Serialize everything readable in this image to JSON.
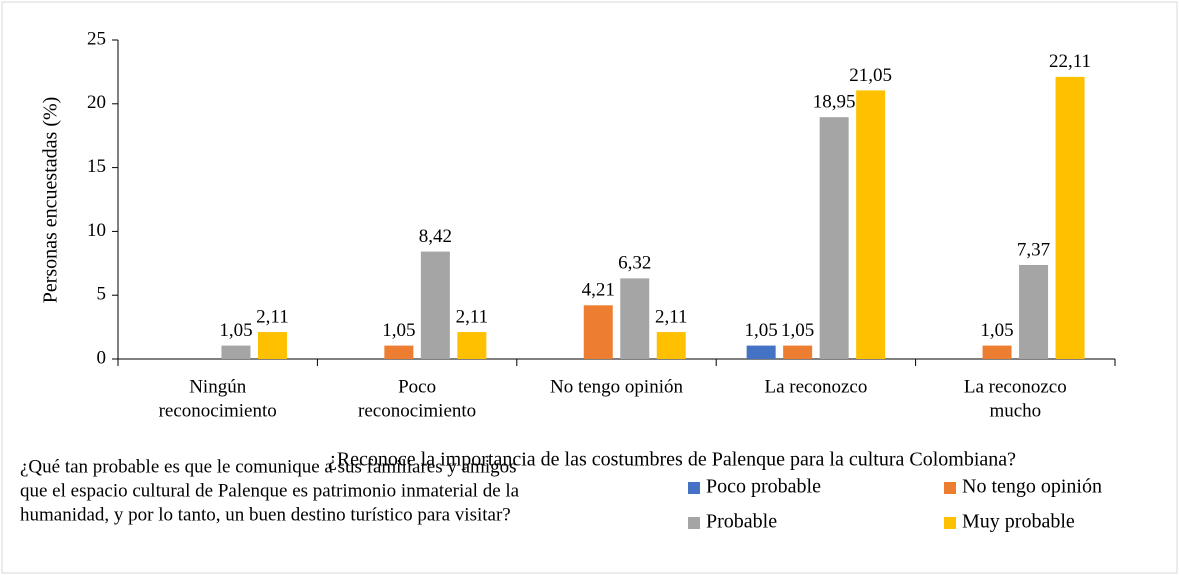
{
  "chart_data": {
    "type": "bar",
    "y_label": "Personas encuestadas (%)",
    "x_label": "¿Reconoce la importancia de las costumbres de Palenque para la cultura Colombiana?",
    "legend_title": [
      "¿Qué tan probable es que le comunique a sus familiares y amigos",
      "que el espacio cultural de Palenque es patrimonio inmaterial de la",
      "humanidad, y por lo tanto, un buen destino turístico para visitar?"
    ],
    "categories": [
      [
        "Ningún",
        "reconocimiento"
      ],
      [
        "Poco",
        "reconocimiento"
      ],
      [
        "No tengo opinión"
      ],
      [
        "La reconozco"
      ],
      [
        "La reconozco",
        "mucho"
      ]
    ],
    "series": [
      {
        "name": "Poco probable",
        "color": "#4472c4",
        "values": [
          null,
          null,
          null,
          1.05,
          null
        ],
        "value_labels": [
          null,
          null,
          null,
          "1,05",
          null
        ]
      },
      {
        "name": "No tengo opinión",
        "color": "#ed7d31",
        "values": [
          null,
          1.05,
          4.21,
          1.05,
          1.05
        ],
        "value_labels": [
          null,
          "1,05",
          "4,21",
          "1,05",
          "1,05"
        ]
      },
      {
        "name": "Probable",
        "color": "#a5a5a5",
        "values": [
          1.05,
          8.42,
          6.32,
          18.95,
          7.37
        ],
        "value_labels": [
          "1,05",
          "8,42",
          "6,32",
          "18,95",
          "7,37"
        ]
      },
      {
        "name": "Muy probable",
        "color": "#ffc000",
        "values": [
          2.11,
          2.11,
          2.11,
          21.05,
          22.11
        ],
        "value_labels": [
          "2,11",
          "2,11",
          "2,11",
          "21,05",
          "22,11"
        ]
      }
    ],
    "ylim": [
      0,
      25
    ],
    "yticks": [
      0,
      5,
      10,
      15,
      20,
      25
    ],
    "legend": "bottom-right"
  }
}
